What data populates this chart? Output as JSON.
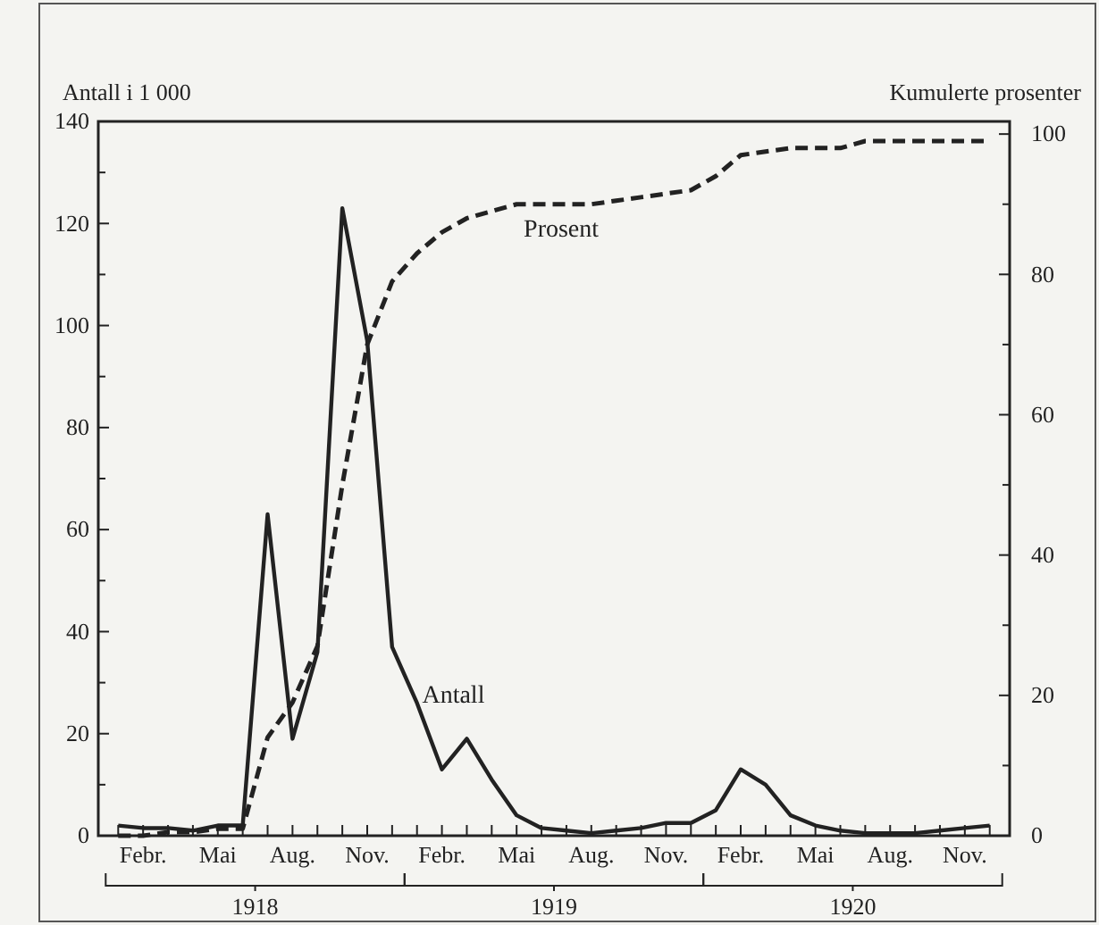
{
  "chart_data": {
    "type": "line",
    "ylabel": "Antall i 1 000",
    "y2label": "Kumulerte prosenter",
    "categories": [
      null,
      "Febr.",
      null,
      null,
      "Mai",
      null,
      null,
      "Aug.",
      null,
      null,
      "Nov.",
      null,
      null,
      "Febr.",
      null,
      null,
      "Mai",
      null,
      null,
      "Aug.",
      null,
      null,
      "Nov.",
      null,
      null,
      "Febr.",
      null,
      null,
      "Mai",
      null,
      null,
      "Aug.",
      null,
      null,
      "Nov.",
      null
    ],
    "ylim": [
      0,
      140
    ],
    "yticks": [
      0,
      {
        "value": 10,
        "label": null
      },
      20,
      {
        "value": 30,
        "label": null
      },
      40,
      {
        "value": 50,
        "label": null
      },
      60,
      {
        "value": 70,
        "label": null
      },
      80,
      {
        "value": 90,
        "label": null
      },
      100,
      {
        "value": 110,
        "label": null
      },
      120,
      {
        "value": 130,
        "label": null
      },
      140
    ],
    "y2lim": [
      0,
      101.8
    ],
    "y2ticks": [
      0,
      {
        "value": 10,
        "label": null
      },
      20,
      {
        "value": 30,
        "label": null
      },
      40,
      {
        "value": 50,
        "label": null
      },
      60,
      {
        "value": 70,
        "label": null
      },
      80,
      {
        "value": 90,
        "label": null
      },
      100
    ],
    "series": [
      {
        "name": "Antall",
        "color": "#222222",
        "line_style": "solid",
        "values": [
          2,
          1.5,
          1.5,
          1,
          2,
          2,
          63,
          19,
          36,
          123,
          97,
          37,
          26,
          13,
          19,
          11,
          4,
          1.5,
          1,
          0.5,
          1,
          1.5,
          2.5,
          2.5,
          5,
          13,
          10,
          4,
          2,
          1,
          0.5,
          0.5,
          0.5,
          1,
          1.5,
          2
        ]
      },
      {
        "name": "Prosent",
        "color": "#222222",
        "line_style": "dashed",
        "axis": "y2",
        "values": [
          0,
          0,
          0.5,
          0.5,
          1,
          1,
          14,
          19,
          27,
          50,
          70,
          79,
          83,
          86,
          88,
          89,
          90,
          90,
          90,
          90,
          90.5,
          91,
          91.5,
          92,
          94,
          97,
          97.5,
          98,
          98,
          98,
          99,
          99,
          99,
          99,
          99,
          99
        ]
      }
    ],
    "annotations": [
      "1918",
      "1919",
      "1920"
    ],
    "marker": "none",
    "grid": false,
    "legend": false
  }
}
